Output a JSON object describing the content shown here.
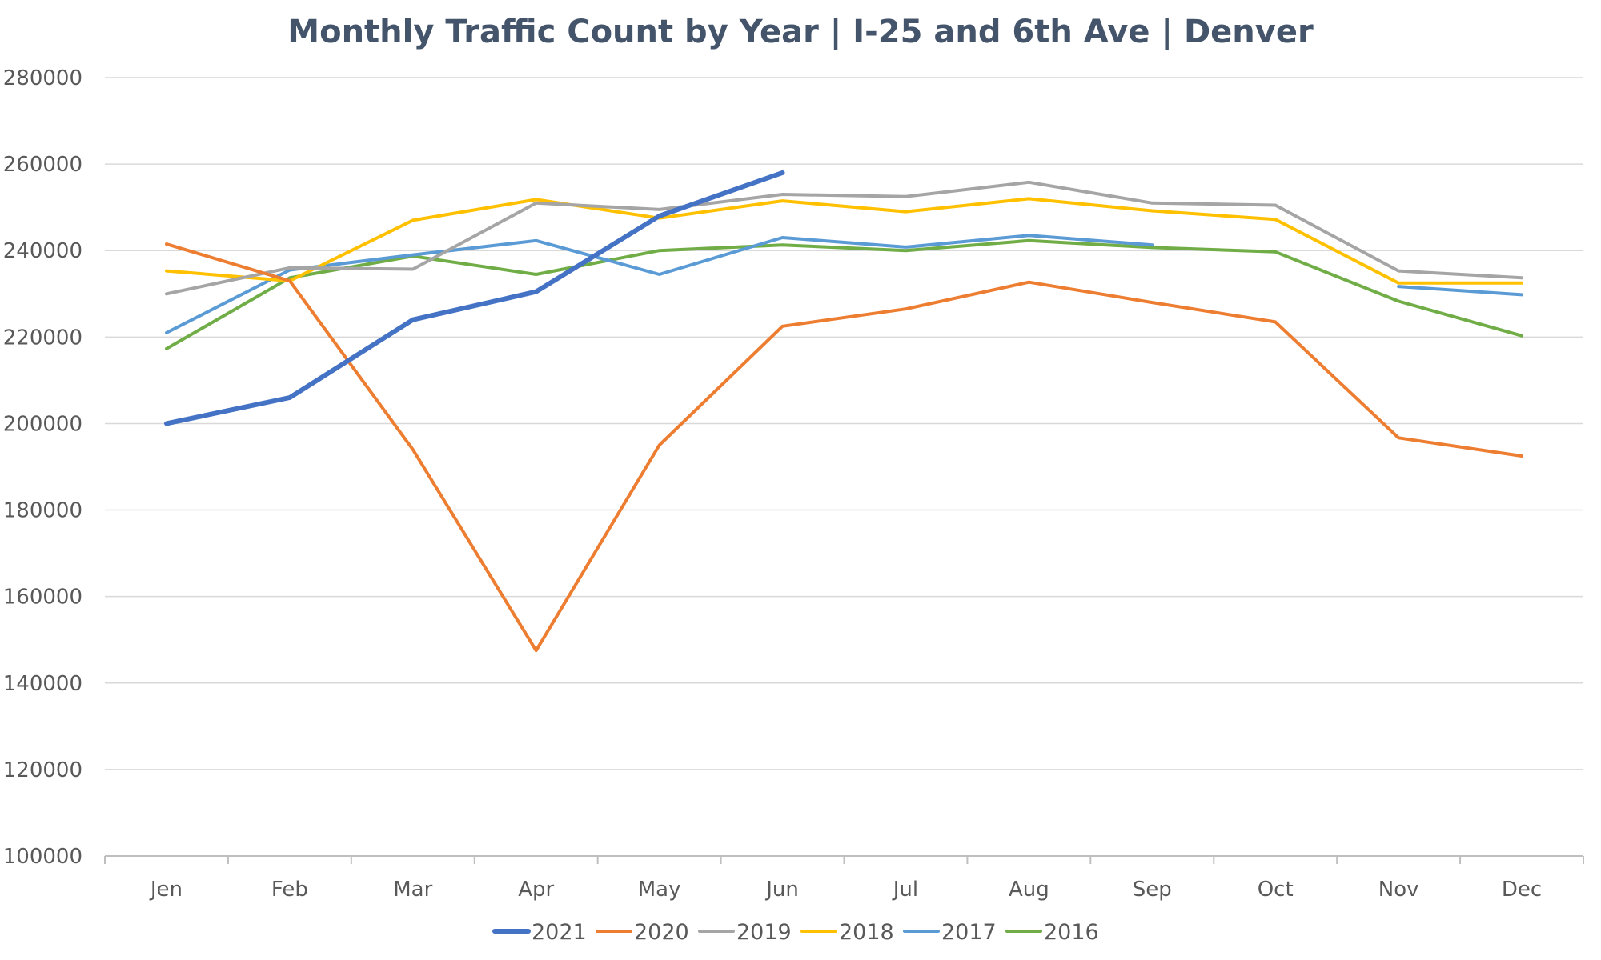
{
  "chart_data": {
    "type": "line",
    "title": "Monthly Traffic Count by Year | I-25 and 6th Ave | Denver",
    "xlabel": "",
    "ylabel": "",
    "categories": [
      "Jen",
      "Feb",
      "Mar",
      "Apr",
      "May",
      "Jun",
      "Jul",
      "Aug",
      "Sep",
      "Oct",
      "Nov",
      "Dec"
    ],
    "ylim": [
      100000,
      280000
    ],
    "yticks": [
      100000,
      120000,
      140000,
      160000,
      180000,
      200000,
      220000,
      240000,
      260000,
      280000
    ],
    "grid": true,
    "legend_position": "bottom",
    "series": [
      {
        "name": "2021",
        "color": "#4472c4",
        "values": [
          200000,
          206000,
          224000,
          230500,
          248000,
          258000,
          null,
          null,
          null,
          null,
          null,
          null
        ]
      },
      {
        "name": "2020",
        "color": "#ed7d31",
        "values": [
          241500,
          233000,
          194000,
          147500,
          195000,
          222500,
          226500,
          232700,
          228000,
          223500,
          196700,
          192500
        ]
      },
      {
        "name": "2019",
        "color": "#a5a5a5",
        "values": [
          230000,
          236000,
          235700,
          251000,
          249500,
          253000,
          252500,
          255800,
          251000,
          250500,
          235300,
          233700
        ]
      },
      {
        "name": "2018",
        "color": "#ffc000",
        "values": [
          235300,
          233000,
          247000,
          251800,
          247500,
          251500,
          249000,
          252000,
          249200,
          247200,
          232500,
          232500
        ]
      },
      {
        "name": "2017",
        "color": "#5b9bd5",
        "values": [
          221000,
          235500,
          239000,
          242300,
          234500,
          243000,
          240800,
          243500,
          241300,
          null,
          231700,
          229800
        ]
      },
      {
        "name": "2016",
        "color": "#70ad47",
        "values": [
          217300,
          233700,
          238700,
          234500,
          240000,
          241300,
          240000,
          242300,
          240700,
          239700,
          228300,
          220300
        ]
      }
    ]
  }
}
